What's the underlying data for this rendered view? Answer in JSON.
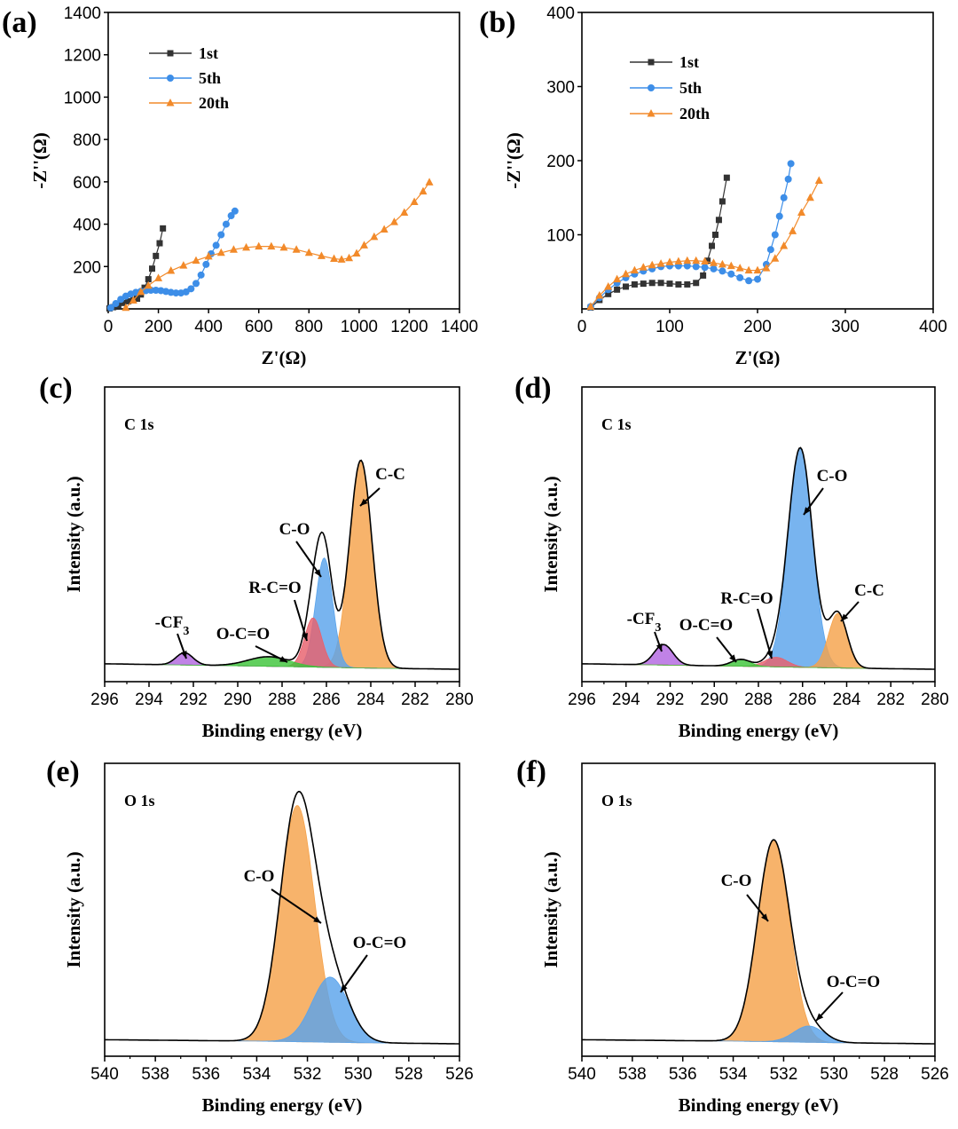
{
  "colors": {
    "black_series": "#333333",
    "blue_series": "#3d8ee8",
    "orange_series": "#f28a2a",
    "peak_orange": "#f5a24a",
    "peak_blue": "#5aa4ec",
    "peak_red": "#e8606c",
    "peak_green": "#3ec43a",
    "peak_purple": "#b266e0",
    "envelope": "#000000"
  },
  "chart_data": [
    {
      "panel": "(a)",
      "type": "scatter",
      "xlabel": "Z'(Ω)",
      "ylabel": "-Z''(Ω)",
      "xlim": [
        0,
        1400
      ],
      "ylim": [
        0,
        1400
      ],
      "xticks": [
        "0",
        "200",
        "400",
        "600",
        "800",
        "1000",
        "1200",
        "1400"
      ],
      "yticks": [
        "200",
        "400",
        "600",
        "800",
        "1000",
        "1200",
        "1400"
      ],
      "legend_position": "top-left",
      "series": [
        {
          "name": "1st",
          "marker": "square",
          "color": "#333333",
          "x": [
            5,
            20,
            40,
            60,
            80,
            100,
            115,
            130,
            145,
            160,
            175,
            190,
            205,
            218
          ],
          "y": [
            2,
            8,
            18,
            28,
            36,
            42,
            48,
            68,
            100,
            140,
            190,
            250,
            310,
            380
          ]
        },
        {
          "name": "5th",
          "marker": "circle",
          "color": "#3d8ee8",
          "x": [
            10,
            30,
            50,
            70,
            90,
            110,
            130,
            150,
            170,
            190,
            210,
            230,
            250,
            270,
            290,
            310,
            330,
            350,
            370,
            390,
            410,
            430,
            450,
            470,
            490,
            505
          ],
          "y": [
            5,
            25,
            45,
            60,
            70,
            78,
            83,
            86,
            88,
            88,
            86,
            82,
            78,
            75,
            75,
            80,
            95,
            120,
            160,
            210,
            260,
            300,
            350,
            400,
            440,
            462
          ]
        },
        {
          "name": "20th",
          "marker": "triangle",
          "color": "#f28a2a",
          "x": [
            70,
            100,
            130,
            160,
            200,
            250,
            300,
            350,
            400,
            450,
            500,
            550,
            600,
            650,
            700,
            750,
            800,
            850,
            900,
            930,
            960,
            990,
            1020,
            1060,
            1100,
            1140,
            1180,
            1220,
            1255,
            1280
          ],
          "y": [
            5,
            40,
            80,
            110,
            145,
            180,
            205,
            228,
            248,
            265,
            280,
            290,
            295,
            295,
            290,
            280,
            265,
            250,
            237,
            233,
            240,
            262,
            300,
            340,
            375,
            410,
            455,
            505,
            555,
            598
          ]
        }
      ]
    },
    {
      "panel": "(b)",
      "type": "scatter",
      "xlabel": "Z'(Ω)",
      "ylabel": "-Z''(Ω)",
      "xlim": [
        0,
        400
      ],
      "ylim": [
        0,
        400
      ],
      "xticks": [
        "0",
        "100",
        "200",
        "300",
        "400"
      ],
      "yticks": [
        "100",
        "200",
        "300",
        "400"
      ],
      "legend_position": "top-left",
      "series": [
        {
          "name": "1st",
          "marker": "square",
          "color": "#333333",
          "x": [
            10,
            20,
            30,
            40,
            50,
            60,
            70,
            80,
            90,
            100,
            110,
            120,
            130,
            138,
            143,
            148,
            152,
            156,
            160,
            165
          ],
          "y": [
            2,
            12,
            20,
            26,
            30,
            33,
            34,
            35,
            35,
            34,
            33,
            33,
            35,
            45,
            65,
            85,
            100,
            120,
            145,
            177
          ]
        },
        {
          "name": "5th",
          "marker": "circle",
          "color": "#3d8ee8",
          "x": [
            10,
            20,
            30,
            40,
            50,
            60,
            70,
            80,
            90,
            100,
            110,
            120,
            130,
            140,
            150,
            160,
            170,
            180,
            190,
            200,
            210,
            215,
            220,
            225,
            230,
            235,
            238
          ],
          "y": [
            3,
            15,
            26,
            35,
            42,
            47,
            51,
            54,
            57,
            58,
            58,
            58,
            57,
            56,
            54,
            51,
            47,
            42,
            38,
            40,
            60,
            80,
            100,
            125,
            150,
            175,
            196
          ]
        },
        {
          "name": "20th",
          "marker": "triangle",
          "color": "#f28a2a",
          "x": [
            10,
            20,
            30,
            40,
            50,
            60,
            70,
            80,
            90,
            100,
            110,
            120,
            130,
            140,
            150,
            160,
            170,
            180,
            190,
            200,
            210,
            220,
            230,
            240,
            250,
            260,
            270
          ],
          "y": [
            3,
            18,
            30,
            40,
            47,
            52,
            56,
            59,
            61,
            63,
            64,
            65,
            65,
            64,
            62,
            60,
            58,
            55,
            52,
            52,
            55,
            68,
            85,
            105,
            130,
            150,
            173
          ]
        }
      ]
    },
    {
      "panel": "(c)",
      "type": "area",
      "title": "C 1s",
      "xlabel": "Binding energy (eV)",
      "ylabel": "Intensity (a.u.)",
      "xlim": [
        296,
        280
      ],
      "ylim": [
        0,
        1
      ],
      "xticks": [
        "296",
        "294",
        "292",
        "290",
        "288",
        "286",
        "284",
        "282",
        "280"
      ],
      "background": {
        "x": [
          296,
          292,
          288,
          284,
          280
        ],
        "y": [
          0.02,
          0.015,
          0.01,
          0.004,
          0.0
        ]
      },
      "peaks": [
        {
          "name": "C-C",
          "center": 284.45,
          "height": 0.76,
          "fwhm": 1.2,
          "color": "#f5a24a"
        },
        {
          "name": "C-O",
          "center": 286.1,
          "height": 0.4,
          "fwhm": 0.9,
          "color": "#5aa4ec"
        },
        {
          "name": "R-C=O",
          "center": 286.6,
          "height": 0.18,
          "fwhm": 0.9,
          "color": "#e8606c"
        },
        {
          "name": "O-C=O",
          "center": 288.6,
          "height": 0.035,
          "fwhm": 2.2,
          "color": "#3ec43a"
        },
        {
          "name": "-CF3",
          "center": 292.4,
          "height": 0.045,
          "fwhm": 0.9,
          "color": "#b266e0"
        }
      ],
      "annotations": [
        "C-C",
        "C-O",
        "R-C=O",
        "O-C=O",
        "-CF"
      ]
    },
    {
      "panel": "(d)",
      "type": "area",
      "title": "C 1s",
      "xlabel": "Binding energy (eV)",
      "ylabel": "Intensity (a.u.)",
      "xlim": [
        296,
        280
      ],
      "ylim": [
        0,
        1
      ],
      "xticks": [
        "296",
        "294",
        "292",
        "290",
        "288",
        "286",
        "284",
        "282",
        "280"
      ],
      "background": {
        "x": [
          296,
          292,
          288,
          284,
          280
        ],
        "y": [
          0.02,
          0.015,
          0.01,
          0.004,
          0.0
        ]
      },
      "peaks": [
        {
          "name": "C-O",
          "center": 286.1,
          "height": 0.8,
          "fwhm": 1.3,
          "color": "#5aa4ec"
        },
        {
          "name": "C-C",
          "center": 284.4,
          "height": 0.2,
          "fwhm": 1.0,
          "color": "#f5a24a"
        },
        {
          "name": "R-C=O",
          "center": 287.2,
          "height": 0.035,
          "fwhm": 1.2,
          "color": "#e8606c"
        },
        {
          "name": "O-C=O",
          "center": 288.8,
          "height": 0.025,
          "fwhm": 1.0,
          "color": "#3ec43a"
        },
        {
          "name": "-CF3",
          "center": 292.3,
          "height": 0.075,
          "fwhm": 1.0,
          "color": "#b266e0"
        }
      ],
      "annotations": [
        "C-O",
        "C-C",
        "R-C=O",
        "O-C=O",
        "-CF"
      ]
    },
    {
      "panel": "(e)",
      "type": "area",
      "title": "O 1s",
      "xlabel": "Binding energy (eV)",
      "ylabel": "Intensity (a.u.)",
      "xlim": [
        540,
        526
      ],
      "ylim": [
        0,
        1
      ],
      "xticks": [
        "540",
        "538",
        "536",
        "534",
        "532",
        "530",
        "528",
        "526"
      ],
      "background": {
        "x": [
          540,
          534,
          530,
          526
        ],
        "y": [
          0.015,
          0.01,
          0.004,
          0.0
        ]
      },
      "peaks": [
        {
          "name": "C-O",
          "center": 532.4,
          "height": 0.87,
          "fwhm": 1.6,
          "color": "#f5a24a"
        },
        {
          "name": "O-C=O",
          "center": 531.1,
          "height": 0.24,
          "fwhm": 1.7,
          "color": "#5aa4ec"
        }
      ],
      "annotations": [
        "C-O",
        "O-C=O"
      ]
    },
    {
      "panel": "(f)",
      "type": "area",
      "title": "O 1s",
      "xlabel": "Binding energy (eV)",
      "ylabel": "Intensity (a.u.)",
      "xlim": [
        540,
        526
      ],
      "ylim": [
        0,
        1
      ],
      "xticks": [
        "540",
        "538",
        "536",
        "534",
        "532",
        "530",
        "528",
        "526"
      ],
      "background": {
        "x": [
          540,
          534,
          530,
          526
        ],
        "y": [
          0.015,
          0.01,
          0.004,
          0.0
        ]
      },
      "peaks": [
        {
          "name": "C-O",
          "center": 532.4,
          "height": 0.74,
          "fwhm": 1.5,
          "color": "#f5a24a"
        },
        {
          "name": "O-C=O",
          "center": 531.0,
          "height": 0.06,
          "fwhm": 1.4,
          "color": "#5aa4ec"
        }
      ],
      "annotations": [
        "C-O",
        "O-C=O"
      ]
    }
  ]
}
